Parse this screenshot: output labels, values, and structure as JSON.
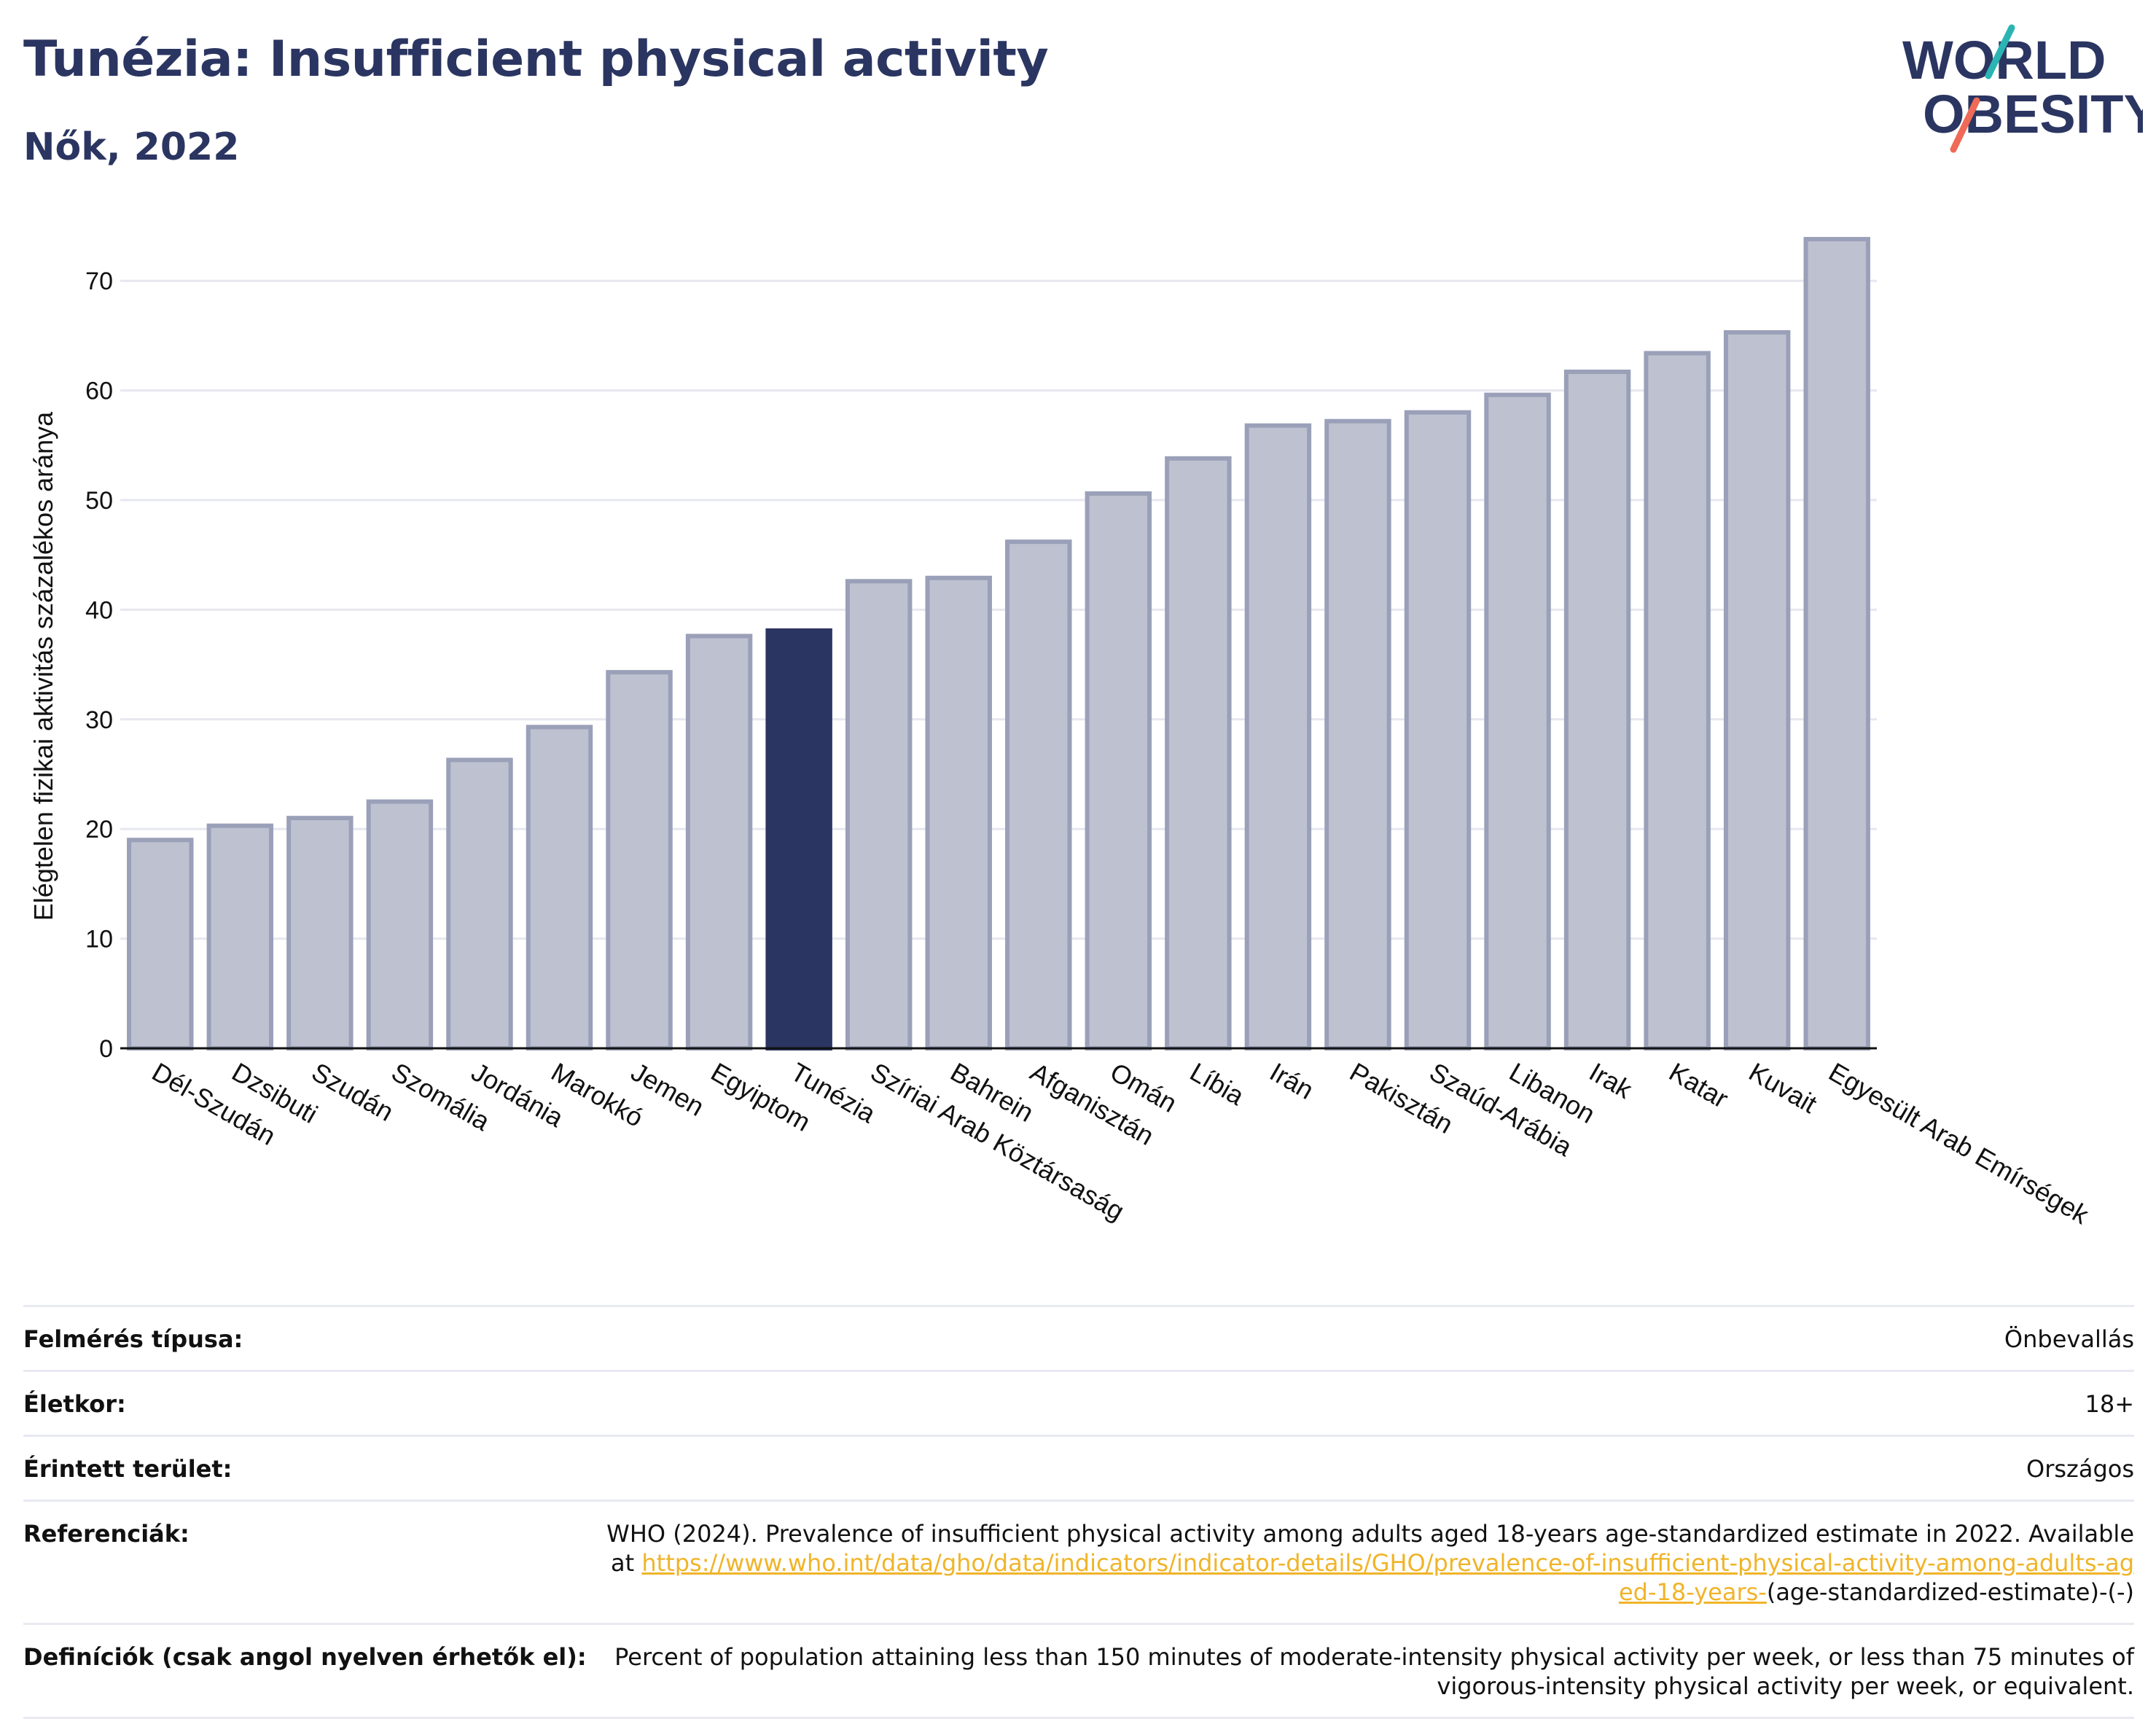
{
  "title": "Tunézia: Insufficient physical activity",
  "subtitle": "Nők, 2022",
  "logo": {
    "line1": "WORLD",
    "line2": "OBESITY"
  },
  "colors": {
    "highlight": "#2b3561",
    "bar": "#bec1cf",
    "bar_edge": "#9aa0b8",
    "title": "#2b3561",
    "link": "#f0b429"
  },
  "chart_data": {
    "type": "bar",
    "title": "Tunézia: Insufficient physical activity",
    "subtitle": "Nők, 2022",
    "xlabel": "",
    "ylabel": "Elégtelen fizikai aktivitás százalékos aránya",
    "ylim": [
      0,
      75
    ],
    "yticks": [
      0,
      10,
      20,
      30,
      40,
      50,
      60,
      70
    ],
    "grid": true,
    "highlight": "Tunézia",
    "categories": [
      "Dél-Szudán",
      "Dzsibuti",
      "Szudán",
      "Szomália",
      "Jordánia",
      "Marokkó",
      "Jemen",
      "Egyiptom",
      "Tunézia",
      "Szíriai Arab Köztársaság",
      "Bahrein",
      "Afganisztán",
      "Omán",
      "Líbia",
      "Irán",
      "Pakisztán",
      "Szaúd-Arábia",
      "Libanon",
      "Irak",
      "Katar",
      "Kuvait",
      "Egyesült Arab Emírségek"
    ],
    "values": [
      19.0,
      20.3,
      21.0,
      22.5,
      26.3,
      29.3,
      34.3,
      37.6,
      38.1,
      42.6,
      42.9,
      46.2,
      50.6,
      53.8,
      56.8,
      57.2,
      58.0,
      59.6,
      61.7,
      63.4,
      65.3,
      73.8
    ]
  },
  "meta": {
    "survey_label": "Felmérés típusa:",
    "survey_value": "Önbevallás",
    "age_label": "Életkor:",
    "age_value": "18+",
    "area_label": "Érintett terület:",
    "area_value": "Országos",
    "ref_label": "Referenciák:",
    "ref_text": "WHO (2024). Prevalence of insufficient physical activity among adults aged 18-years age-standardized estimate in 2022. Available at ",
    "ref_link": "https://www.who.int/data/gho/data/indicators/indicator-details/GHO/prevalence-of-insufficient-physical-activity-among-adults-aged-18-years-",
    "ref_tail": "(age-standardized-estimate)-(-)",
    "def_label": "Definíciók (csak angol nyelven érhetők el):",
    "def_text": "Percent of population attaining less than 150 minutes of moderate-intensity physical activity per week, or less than 75 minutes of vigorous-intensity physical activity per week, or equivalent."
  }
}
